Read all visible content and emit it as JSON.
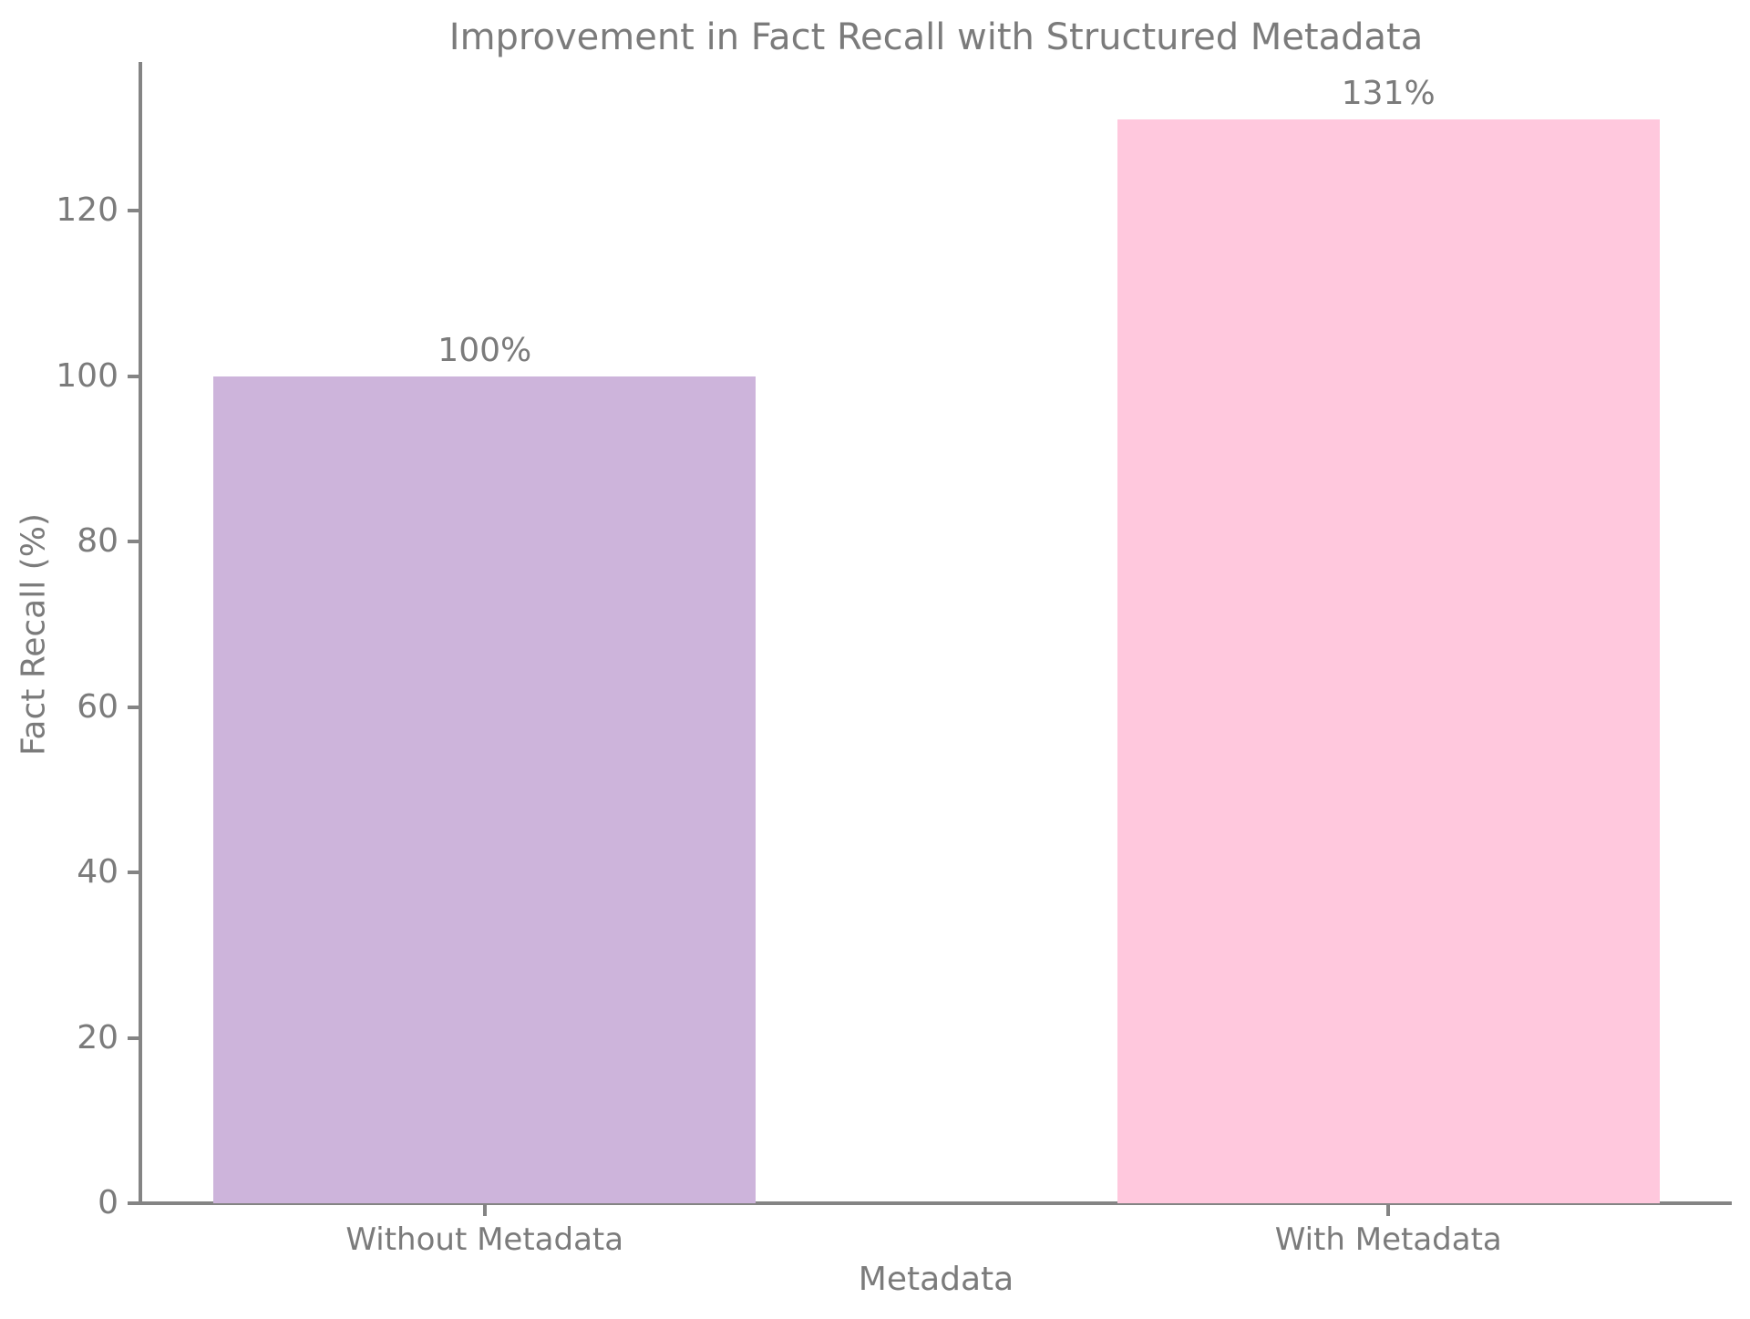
{
  "chart_data": {
    "type": "bar",
    "title": "Improvement in Fact Recall with Structured Metadata",
    "xlabel": "Metadata",
    "ylabel": "Fact Recall (%)",
    "categories": [
      "Without Metadata",
      "With Metadata"
    ],
    "values": [
      100,
      131
    ],
    "bar_labels": [
      "100%",
      "131%"
    ],
    "bar_colors": [
      "#cdb4db",
      "#ffc8dd"
    ],
    "yticks": [
      0,
      20,
      40,
      60,
      80,
      100,
      120
    ],
    "ylim": [
      0,
      137.55
    ],
    "xlim": [
      -0.38,
      1.38
    ],
    "bar_width_units": 0.6,
    "grid": false,
    "legend_position": "none",
    "text_color": "#7b7b7b",
    "spine_color": "#848484"
  }
}
